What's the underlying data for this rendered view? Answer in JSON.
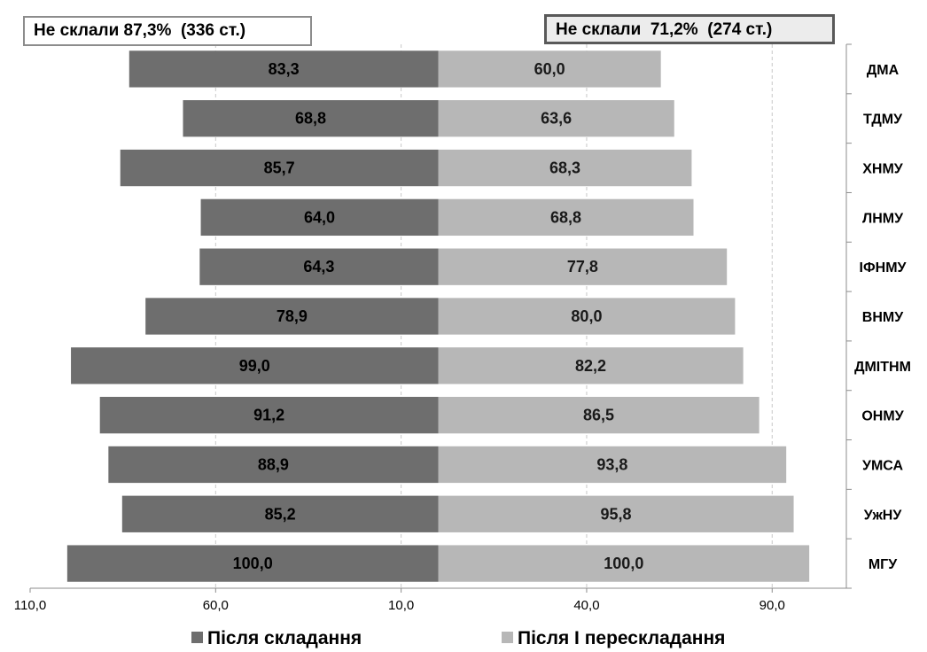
{
  "annotations": {
    "left_box": "Не склали 87,3%  (336 ст.)",
    "right_box": "Не склали  71,2%  (274 ст.)"
  },
  "chart_data": {
    "type": "bar",
    "orientation": "horizontal-diverging",
    "categories": [
      "ДМА",
      "ТДМУ",
      "ХНМУ",
      "ЛНМУ",
      "ІФНМУ",
      "ВНМУ",
      "ДМІТНМ",
      "ОНМУ",
      "УМСА",
      "УжНУ",
      "МГУ"
    ],
    "series": [
      {
        "name": "Після складання",
        "color": "#6e6e6e",
        "direction": "left",
        "values": [
          83.3,
          68.8,
          85.7,
          64.0,
          64.3,
          78.9,
          99.0,
          91.2,
          88.9,
          85.2,
          100.0
        ],
        "labels": [
          "83,3",
          "68,8",
          "85,7",
          "64,0",
          "64,3",
          "78,9",
          "99,0",
          "91,2",
          "88,9",
          "85,2",
          "100,0"
        ]
      },
      {
        "name": "Після І перескладання",
        "color": "#b7b7b7",
        "direction": "right",
        "values": [
          60.0,
          63.6,
          68.3,
          68.8,
          77.8,
          80.0,
          82.2,
          86.5,
          93.8,
          95.8,
          100.0
        ],
        "labels": [
          "60,0",
          "63,6",
          "68,3",
          "68,8",
          "77,8",
          "80,0",
          "82,2",
          "86,5",
          "93,8",
          "95,8",
          "100,0"
        ]
      }
    ],
    "x_ticks": [
      {
        "value": -110,
        "label": "110,0"
      },
      {
        "value": -60,
        "label": "60,0"
      },
      {
        "value": -10,
        "label": "10,0"
      },
      {
        "value": 40,
        "label": "40,0"
      },
      {
        "value": 90,
        "label": "90,0"
      }
    ],
    "xlim": [
      -110,
      110
    ],
    "grid": true,
    "legend_position": "bottom"
  }
}
